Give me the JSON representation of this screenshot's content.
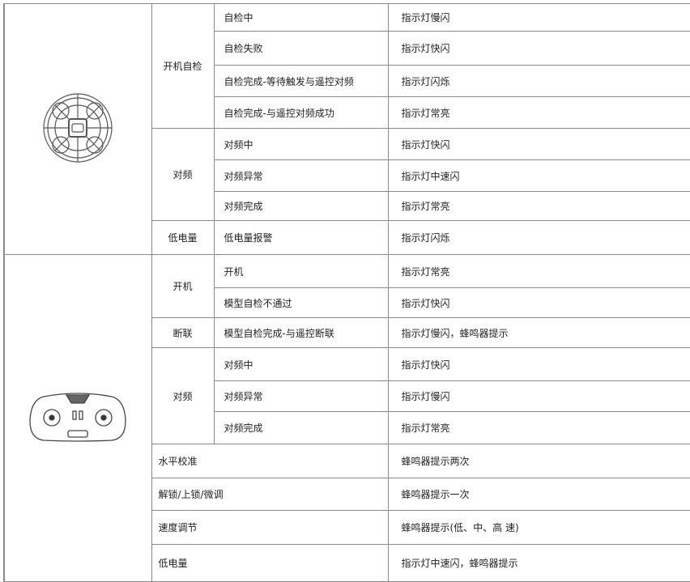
{
  "table": {
    "sections": [
      {
        "groups": [
          {
            "name": "开机自检",
            "rows": [
              [
                "自检中",
                "指示灯慢闪"
              ],
              [
                "自检失败",
                "指示灯快闪"
              ],
              [
                "自检完成-等待触发与遥控对频",
                "指示灯闪烁"
              ],
              [
                "自检完成-与遥控对频成功",
                "指示灯常亮"
              ]
            ]
          },
          {
            "name": "对频",
            "rows": [
              [
                "对频中",
                "指示灯快闪"
              ],
              [
                "对频异常",
                "指示灯中速闪"
              ],
              [
                "对频完成",
                "指示灯常亮"
              ]
            ]
          },
          {
            "name": "低电量",
            "rows": [
              [
                "低电量报警",
                "指示灯闪烁"
              ]
            ]
          }
        ],
        "rows": []
      },
      {
        "groups": [
          {
            "name": "开机",
            "rows": [
              [
                "开机",
                "指示灯常亮"
              ],
              [
                "模型自检不通过",
                "指示灯快闪"
              ]
            ]
          },
          {
            "name": "断联",
            "rows": [
              [
                "模型自检完成-与遥控断联",
                "指示灯慢闪，蜂鸣器提示"
              ]
            ]
          },
          {
            "name": "对频",
            "rows": [
              [
                "对频中",
                "指示灯快闪"
              ],
              [
                "对频异常",
                "指示灯慢闪"
              ],
              [
                "对频完成",
                "指示灯常亮"
              ]
            ]
          }
        ],
        "rows": [
          [
            "水平校准",
            "蜂鸣器提示两次"
          ],
          [
            "解锁/上锁/微调",
            "蜂鸣器提示一次"
          ],
          [
            "速度调节",
            "蜂鸣器提示(低、中、高 速)"
          ],
          [
            "低电量",
            "指示灯中速闪，蜂鸣器提示"
          ]
        ]
      }
    ]
  }
}
